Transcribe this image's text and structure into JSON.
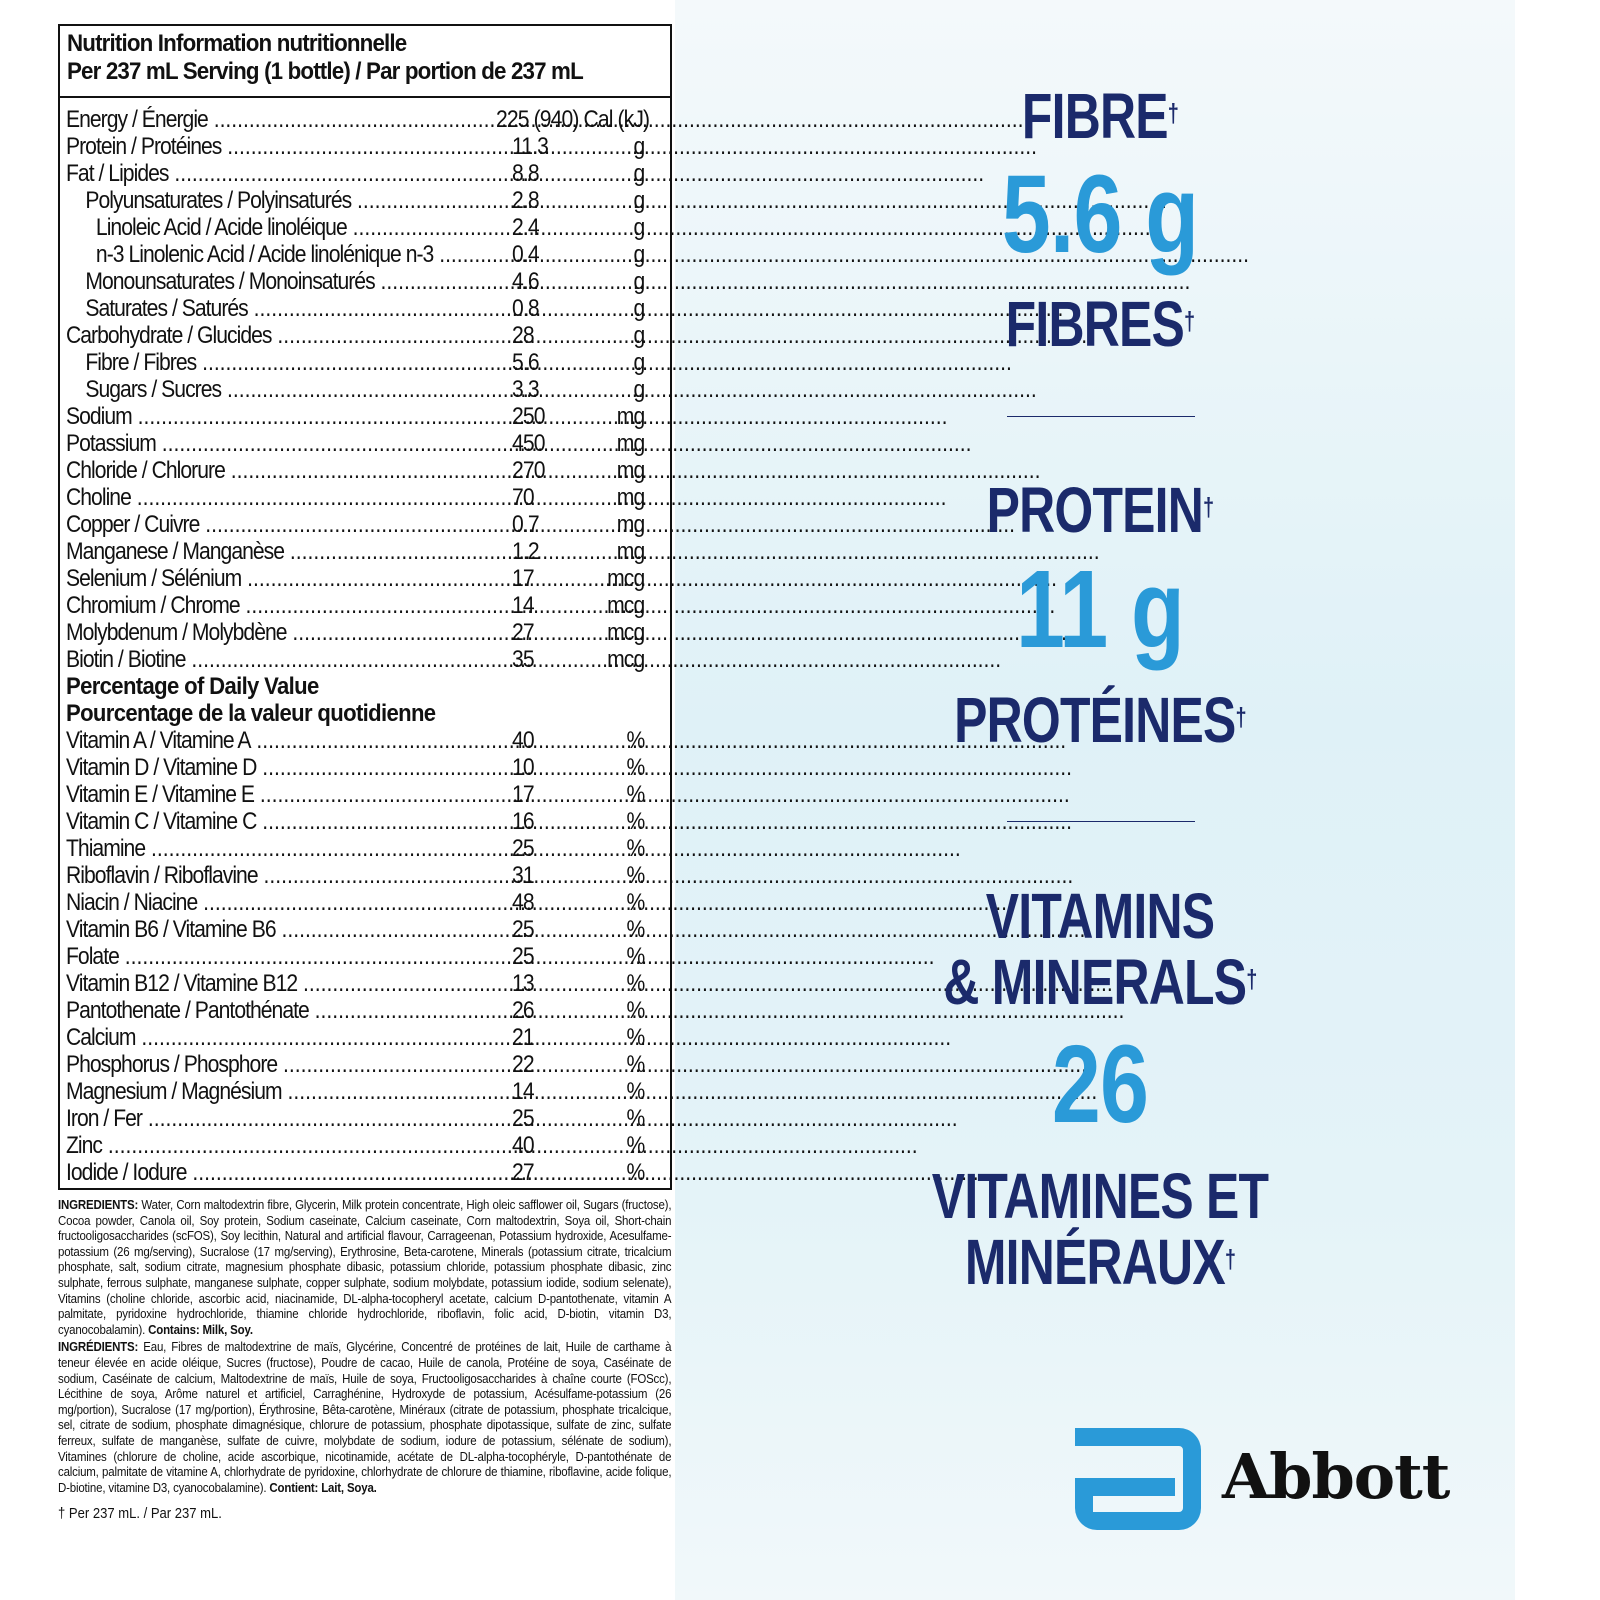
{
  "panel": {
    "title_line1": "Nutrition Information nutritionnelle",
    "title_line2": "Per 237 mL Serving (1 bottle) / Par portion de 237 mL",
    "rows": [
      {
        "label": "Energy / Énergie",
        "value": "225 (940) Cal (kJ)",
        "unit": "",
        "indent": 0
      },
      {
        "label": "Protein / Protéines",
        "value": "11.3",
        "unit": "g",
        "indent": 0
      },
      {
        "label": "Fat / Lipides",
        "value": "8.8",
        "unit": "g",
        "indent": 0
      },
      {
        "label": "Polyunsaturates / Polyinsaturés",
        "value": "2.8",
        "unit": "g",
        "indent": 1
      },
      {
        "label": "Linoleic Acid / Acide linoléique",
        "value": "2.4",
        "unit": "g",
        "indent": 2
      },
      {
        "label": "n-3 Linolenic Acid / Acide linolénique n-3",
        "value": "0.4",
        "unit": "g",
        "indent": 2
      },
      {
        "label": "Monounsaturates / Monoinsaturés",
        "value": "4.6",
        "unit": "g",
        "indent": 1
      },
      {
        "label": "Saturates / Saturés",
        "value": "0.8",
        "unit": "g",
        "indent": 1
      },
      {
        "label": "Carbohydrate / Glucides",
        "value": "28",
        "unit": "g",
        "indent": 0
      },
      {
        "label": "Fibre / Fibres",
        "value": "5.6",
        "unit": "g",
        "indent": 1
      },
      {
        "label": "Sugars / Sucres",
        "value": "3.3",
        "unit": "g",
        "indent": 1
      },
      {
        "label": "Sodium",
        "value": "250",
        "unit": "mg",
        "indent": 0
      },
      {
        "label": "Potassium",
        "value": "450",
        "unit": "mg",
        "indent": 0
      },
      {
        "label": "Chloride / Chlorure",
        "value": "270",
        "unit": "mg",
        "indent": 0
      },
      {
        "label": "Choline",
        "value": "70",
        "unit": "mg",
        "indent": 0
      },
      {
        "label": "Copper / Cuivre",
        "value": "0.7",
        "unit": "mg",
        "indent": 0
      },
      {
        "label": "Manganese / Manganèse",
        "value": "1.2",
        "unit": "mg",
        "indent": 0
      },
      {
        "label": "Selenium / Sélénium",
        "value": "17",
        "unit": "mcg",
        "indent": 0
      },
      {
        "label": "Chromium / Chrome",
        "value": "14",
        "unit": "mcg",
        "indent": 0
      },
      {
        "label": "Molybdenum / Molybdène",
        "value": "27",
        "unit": "mcg",
        "indent": 0
      },
      {
        "label": "Biotin / Biotine",
        "value": "35",
        "unit": "mcg",
        "indent": 0
      }
    ],
    "dv_heading_en": "Percentage of Daily Value",
    "dv_heading_fr": "Pourcentage de la valeur quotidienne",
    "dv_rows": [
      {
        "label": "Vitamin A / Vitamine A",
        "value": "40",
        "unit": "%"
      },
      {
        "label": "Vitamin D / Vitamine D",
        "value": "10",
        "unit": "%"
      },
      {
        "label": "Vitamin E / Vitamine E",
        "value": "17",
        "unit": "%"
      },
      {
        "label": "Vitamin C / Vitamine C",
        "value": "16",
        "unit": "%"
      },
      {
        "label": "Thiamine",
        "value": "25",
        "unit": "%"
      },
      {
        "label": "Riboflavin / Riboflavine",
        "value": "31",
        "unit": "%"
      },
      {
        "label": "Niacin / Niacine",
        "value": "48",
        "unit": "%"
      },
      {
        "label": "Vitamin B6 / Vitamine B6",
        "value": "25",
        "unit": "%"
      },
      {
        "label": "Folate",
        "value": "25",
        "unit": "%"
      },
      {
        "label": "Vitamin B12 / Vitamine B12",
        "value": "13",
        "unit": "%"
      },
      {
        "label": "Pantothenate / Pantothénate",
        "value": "26",
        "unit": "%"
      },
      {
        "label": "Calcium",
        "value": "21",
        "unit": "%"
      },
      {
        "label": "Phosphorus / Phosphore",
        "value": "22",
        "unit": "%"
      },
      {
        "label": "Magnesium / Magnésium",
        "value": "14",
        "unit": "%"
      },
      {
        "label": "Iron / Fer",
        "value": "25",
        "unit": "%"
      },
      {
        "label": "Zinc",
        "value": "40",
        "unit": "%"
      },
      {
        "label": "Iodide / Iodure",
        "value": "27",
        "unit": "%"
      }
    ]
  },
  "ingredients": {
    "en_label": "INGREDIENTS:",
    "en_text": " Water, Corn maltodextrin fibre, Glycerin, Milk protein concentrate, High oleic safflower oil, Sugars (fructose), Cocoa powder, Canola oil, Soy protein, Sodium caseinate, Calcium caseinate, Corn maltodextrin, Soya oil, Short-chain fructooligosaccharides (scFOS), Soy lecithin, Natural and artificial flavour, Carrageenan, Potassium hydroxide, Acesulfame-potassium (26 mg/serving), Sucralose (17 mg/serving), Erythrosine, Beta-carotene, Minerals (potassium citrate, tricalcium phosphate, salt, sodium citrate, magnesium phosphate dibasic, potassium chloride, potassium phosphate dibasic, zinc sulphate, ferrous sulphate, manganese sulphate, copper sulphate, sodium molybdate, potassium iodide, sodium selenate), Vitamins (choline chloride, ascorbic acid, niacinamide, DL-alpha-tocopheryl acetate, calcium D-pantothenate, vitamin A palmitate, pyridoxine hydrochloride, thiamine chloride hydrochloride, riboflavin, folic acid, D-biotin, vitamin D3, cyanocobalamin). ",
    "en_contains": "Contains: Milk, Soy.",
    "fr_label": "INGRÉDIENTS:",
    "fr_text": " Eau, Fibres de maltodextrine de maïs, Glycérine, Concentré de protéines de lait, Huile de carthame à teneur élevée en acide oléique, Sucres (fructose), Poudre de cacao, Huile de canola, Protéine de soya, Caséinate de sodium, Caséinate de calcium, Maltodextrine de maïs, Huile de soya, Fructooligosaccharides à chaîne courte (FOScc), Lécithine de soya, Arôme naturel et artificiel, Carraghénine, Hydroxyde de potassium, Acésulfame-potassium (26 mg/portion), Sucralose (17 mg/portion), Érythrosine, Bêta-carotène, Minéraux (citrate de potassium, phosphate tricalcique, sel, citrate de sodium, phosphate dimagnésique, chlorure de potassium, phosphate dipotassique, sulfate de zinc, sulfate ferreux, sulfate de manganèse, sulfate de cuivre, molybdate de sodium, iodure de potassium, sélénate de sodium), Vitamines (chlorure de choline, acide ascorbique, nicotinamide, acétate de DL-alpha-tocophéryle, D-pantothénate de calcium, palmitate de vitamine A, chlorhydrate de pyridoxine, chlorhydrate de chlorure de thiamine, riboflavine, acide folique, D-biotine, vitamine D3, cyanocobalamine). ",
    "fr_contains": "Contient: Lait, Soya."
  },
  "footnote": "† Per 237 mL. / Par 237 mL.",
  "claims": {
    "fibre_en": "FIBRE",
    "fibre_value": "5.6 g",
    "fibre_fr": "FIBRES",
    "protein_en": "PROTEIN",
    "protein_value": "11 g",
    "protein_fr": "PROTÉINES",
    "vitamins_en_1": "VITAMINS",
    "vitamins_en_2": "& MINERALS",
    "vitamins_value": "26",
    "vitamins_fr_1": "VITAMINES ET",
    "vitamins_fr_2": "MINÉRAUX",
    "dagger": "†"
  },
  "brand": {
    "name": "Abbott",
    "logo_color": "#2a9ad8"
  },
  "colors": {
    "navy": "#1b2a6b",
    "blue": "#2a9ad8"
  }
}
